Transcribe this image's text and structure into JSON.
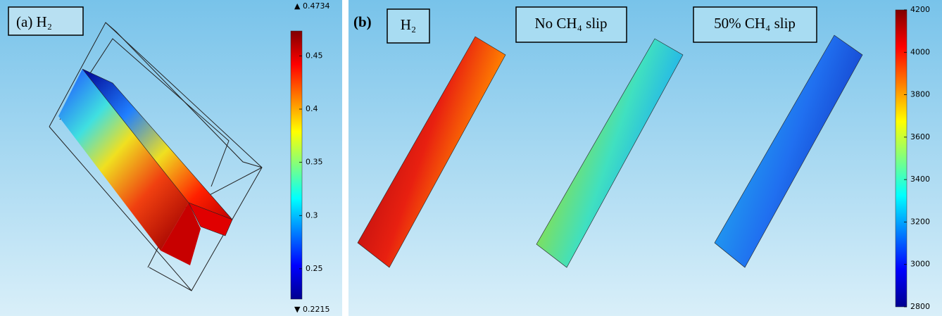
{
  "panel_a": {
    "label": "(a) H₂",
    "colorbar": {
      "min": {
        "value": 0.2215,
        "label": "▼ 0.2215"
      },
      "max": {
        "value": 0.4734,
        "label": "▲ 0.4734"
      },
      "ticks": [
        0.25,
        0.3,
        0.35,
        0.4,
        0.45
      ]
    }
  },
  "panel_b": {
    "label": "(b)",
    "titles": [
      "H₂",
      "No CH₄ slip",
      "50% CH₄ slip"
    ],
    "colorbar": {
      "min": 2800,
      "max": 4200,
      "ticks": [
        2800,
        3000,
        3200,
        3400,
        3600,
        3800,
        4000,
        4200
      ]
    }
  }
}
